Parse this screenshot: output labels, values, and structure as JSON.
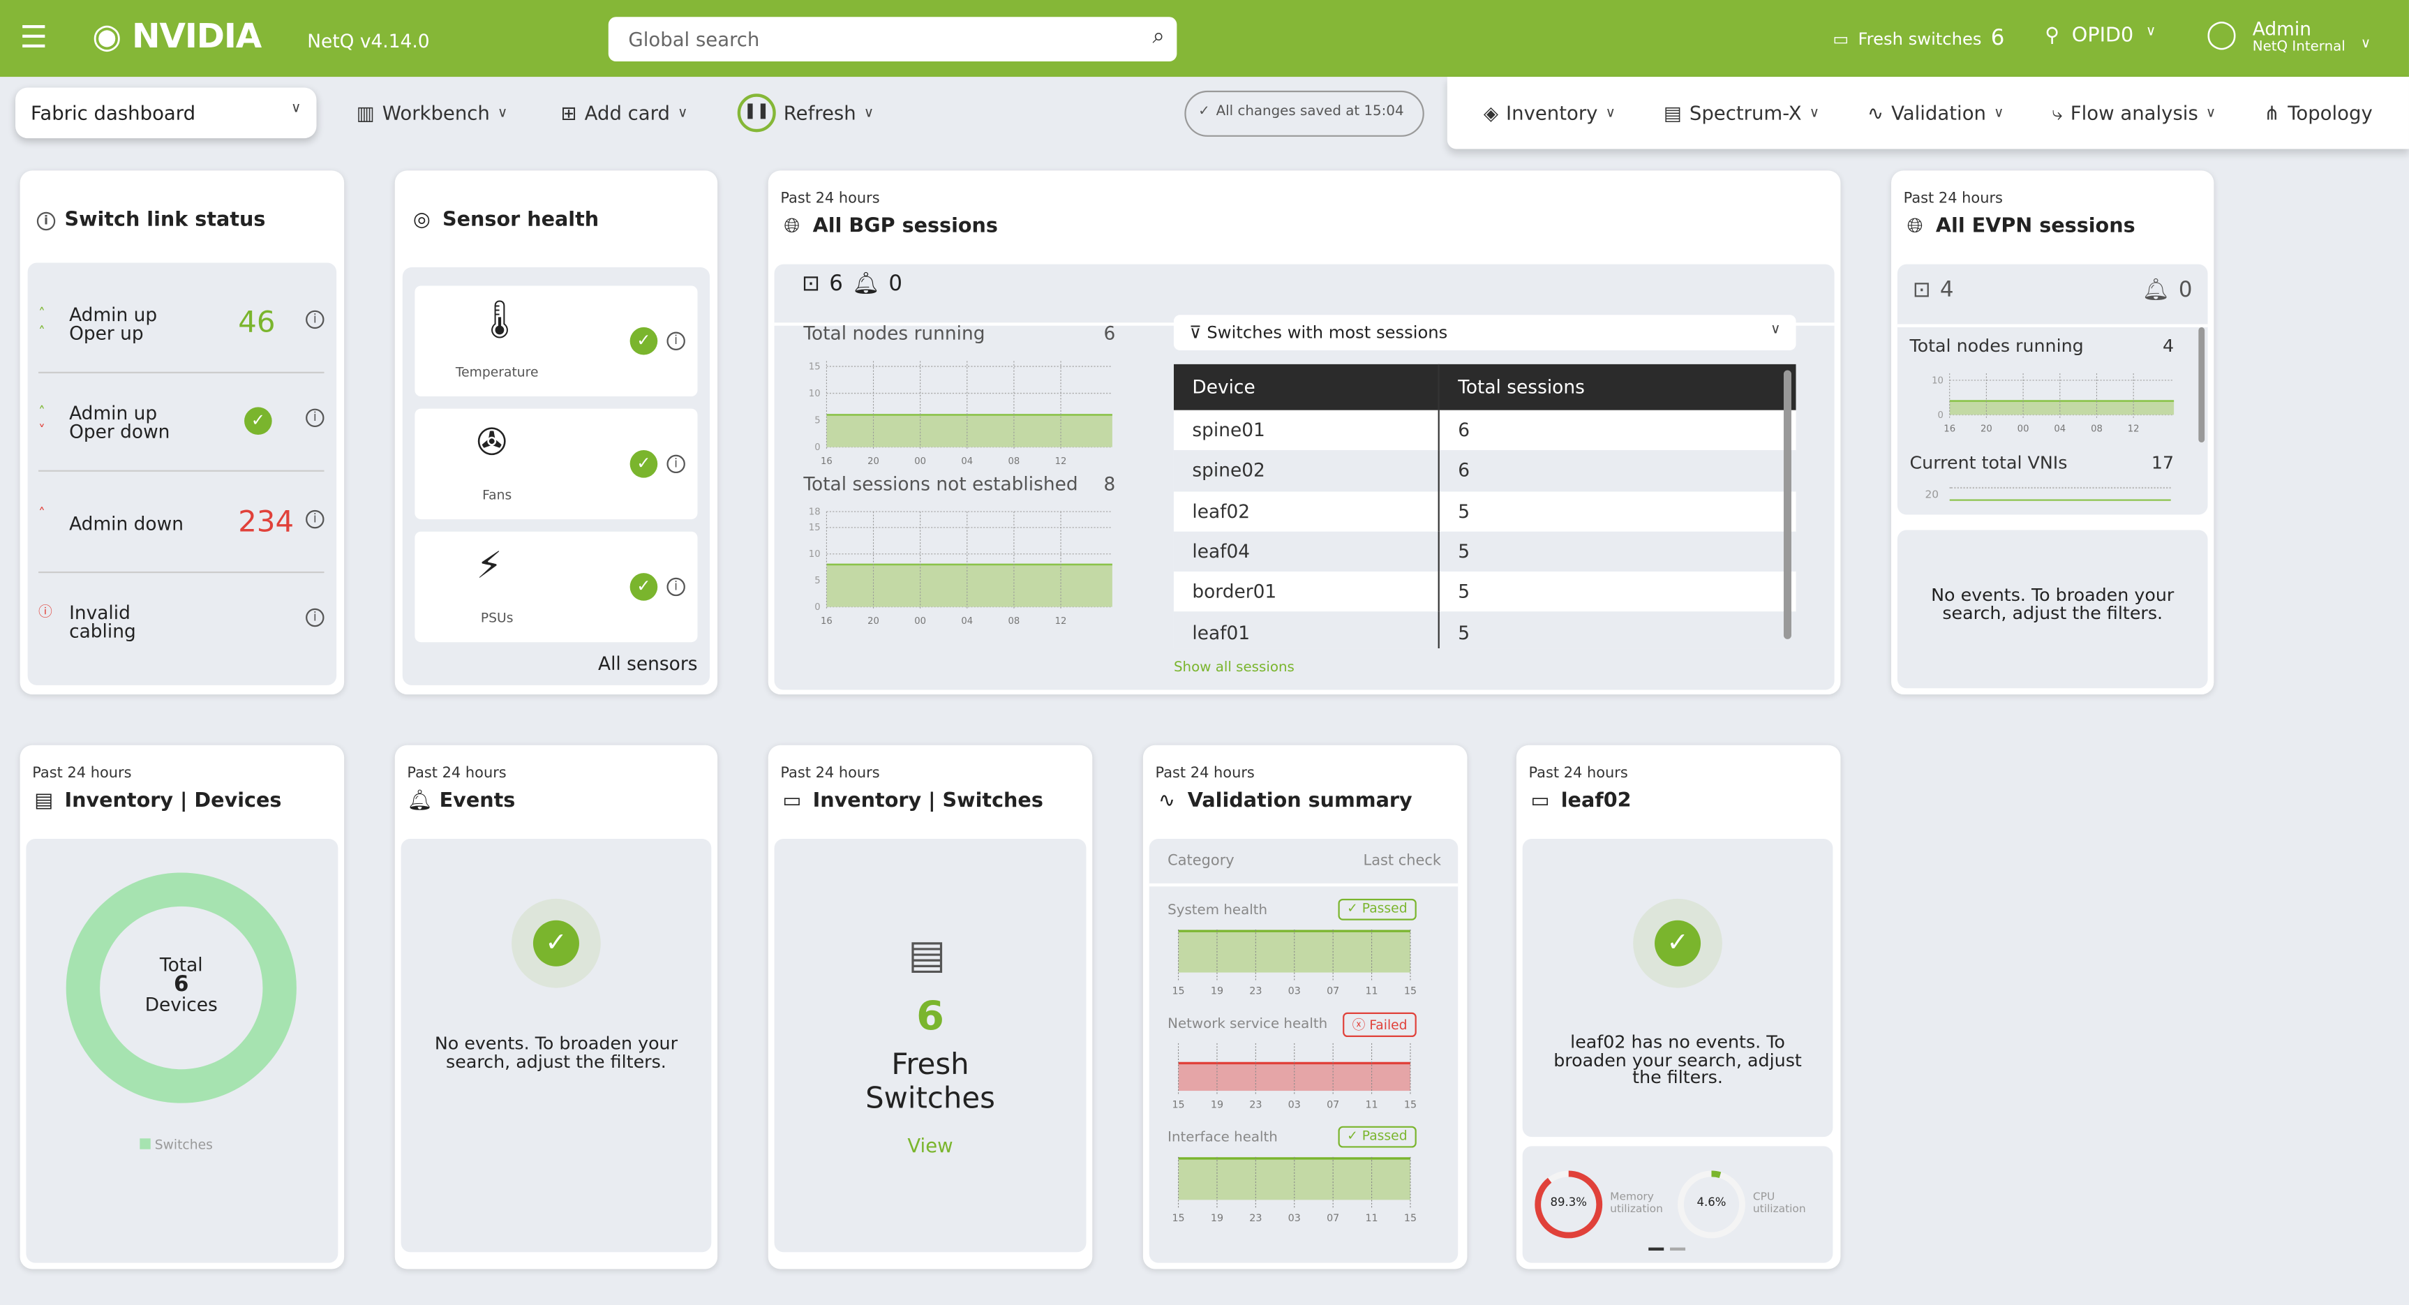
{
  "header": {
    "brand": "NVIDIA",
    "version": "NetQ v4.14.0",
    "search_placeholder": "Global search",
    "fresh_label": "Fresh switches",
    "fresh_count": "6",
    "premises": "OPID0",
    "user": "Admin",
    "org": "NetQ Internal"
  },
  "toolbar": {
    "dashboard": "Fabric dashboard",
    "workbench": "Workbench",
    "add_card": "Add card",
    "refresh": "Refresh",
    "saved": "All changes saved at 15:04"
  },
  "nav": [
    "Inventory",
    "Spectrum-X",
    "Validation",
    "Flow analysis",
    "Topology"
  ],
  "switch_link": {
    "title": "Switch link status",
    "rows": [
      {
        "l1": "Admin up",
        "l2": "Oper up",
        "value": "46"
      },
      {
        "l1": "Admin up",
        "l2": "Oper down",
        "value": ""
      },
      {
        "l1": "Admin down",
        "l2": "",
        "value": "234"
      },
      {
        "l1": "Invalid",
        "l2": "cabling",
        "value": ""
      }
    ]
  },
  "sensor": {
    "title": "Sensor health",
    "items": [
      "Temperature",
      "Fans",
      "PSUs"
    ],
    "link": "All sensors"
  },
  "period": "Past 24 hours",
  "bgp": {
    "title": "All BGP sessions",
    "nodes": "6",
    "alarms": "0",
    "m1_label": "Total nodes running",
    "m1_value": "6",
    "m2_label": "Total sessions not established",
    "m2_value": "8",
    "filter": "Switches with most sessions",
    "columns": [
      "Device",
      "Total sessions"
    ],
    "rows": [
      [
        "spine01",
        "6"
      ],
      [
        "spine02",
        "6"
      ],
      [
        "leaf02",
        "5"
      ],
      [
        "leaf04",
        "5"
      ],
      [
        "border01",
        "5"
      ],
      [
        "leaf01",
        "5"
      ]
    ],
    "show_all": "Show all sessions",
    "chart1": {
      "y_ticks": [
        "15",
        "10",
        "5",
        "0"
      ],
      "ymax": 16,
      "value": 6,
      "x_ticks": [
        "16",
        "20",
        "00",
        "04",
        "08",
        "12"
      ]
    },
    "chart2": {
      "y_ticks": [
        "18",
        "15",
        "10",
        "5",
        "0"
      ],
      "ymax": 18,
      "value": 8,
      "x_ticks": [
        "16",
        "20",
        "00",
        "04",
        "08",
        "12"
      ]
    }
  },
  "evpn": {
    "title": "All EVPN sessions",
    "nodes": "4",
    "alarms": "0",
    "m1_label": "Total nodes running",
    "m1_value": "4",
    "m2_label": "Current total VNIs",
    "m2_value": "17",
    "empty": "No events. To broaden your search, adjust the filters.",
    "chart1": {
      "y_ticks": [
        "10",
        "0"
      ],
      "ymax": 12,
      "value": 4,
      "x_ticks": [
        "16",
        "20",
        "00",
        "04",
        "08",
        "12"
      ]
    },
    "chart2_tick": "20"
  },
  "inventory": {
    "title": "Inventory | Devices",
    "total_label": "Total",
    "total": "6",
    "devices": "Devices",
    "legend": "Switches",
    "color": "#a6e3b0"
  },
  "events": {
    "title": "Events",
    "empty": "No events. To broaden your search, adjust the filters."
  },
  "inv_switches": {
    "title": "Inventory | Switches",
    "count": "6",
    "line1": "Fresh",
    "line2": "Switches",
    "view": "View"
  },
  "validation": {
    "title": "Validation summary",
    "col1": "Category",
    "col2": "Last check",
    "rows": [
      {
        "name": "System health",
        "status": "Passed"
      },
      {
        "name": "Network service health",
        "status": "Failed"
      },
      {
        "name": "Interface health",
        "status": "Passed"
      }
    ],
    "x_ticks": [
      "15",
      "19",
      "23",
      "03",
      "07",
      "11",
      "15"
    ]
  },
  "device": {
    "title": "leaf02",
    "empty": "leaf02 has no events. To broaden your search, adjust the filters.",
    "memory": "89.3%",
    "memory_label": "Memory utilization",
    "memory_pct": 89.3,
    "cpu": "4.6%",
    "cpu_label": "CPU utilization",
    "cpu_pct": 4.6
  },
  "colors": {
    "brand": "#85b737",
    "ok": "#7ab52d",
    "fail": "#e0413a"
  }
}
